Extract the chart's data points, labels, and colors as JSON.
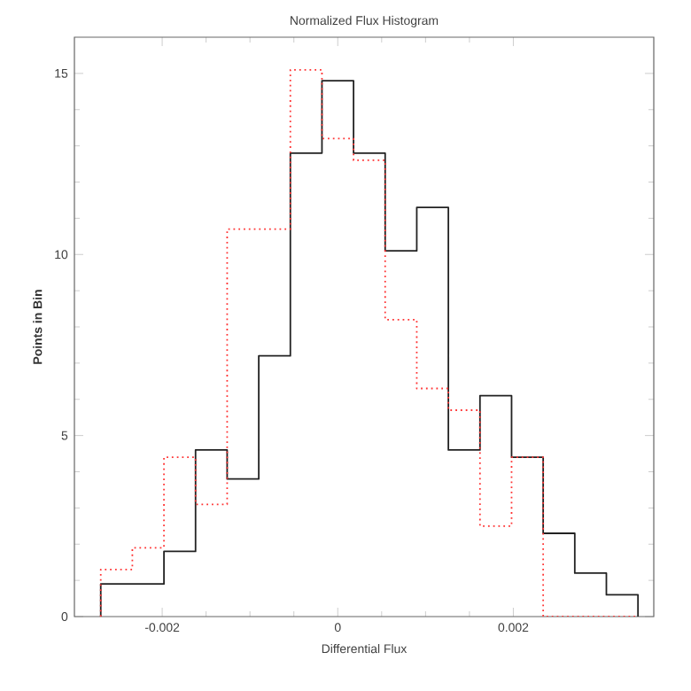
{
  "chart_data": {
    "type": "histogram",
    "title": "Normalized Flux Histogram",
    "xlabel": "Differential Flux",
    "ylabel": "Points in Bin",
    "bins": [
      -0.0027,
      -0.00234,
      -0.00198,
      -0.00162,
      -0.00126,
      -0.0009,
      -0.00054,
      -0.00018,
      0.00018,
      0.00054,
      0.0009,
      0.00126,
      0.00162,
      0.00198,
      0.00234,
      0.0027,
      0.00306,
      0.00342
    ],
    "series": [
      {
        "color": "#222222",
        "line_style": "solid",
        "values": [
          0.9,
          0.9,
          1.8,
          4.6,
          3.8,
          7.2,
          12.8,
          14.8,
          12.8,
          10.1,
          11.3,
          4.6,
          6.1,
          4.4,
          2.3,
          1.2,
          0.6
        ]
      },
      {
        "color": "#ff3333",
        "line_style": "dotted",
        "values": [
          1.3,
          1.9,
          4.4,
          3.1,
          10.7,
          10.7,
          15.1,
          13.2,
          12.6,
          8.2,
          6.3,
          5.7,
          2.5,
          4.4,
          0,
          0,
          0
        ]
      }
    ],
    "xlim": [
      -0.003,
      0.0036
    ],
    "ylim": [
      0,
      16
    ],
    "xticks": [
      -0.002,
      0,
      0.002
    ],
    "yticks": [
      0,
      5,
      10,
      15
    ],
    "grid": false
  }
}
